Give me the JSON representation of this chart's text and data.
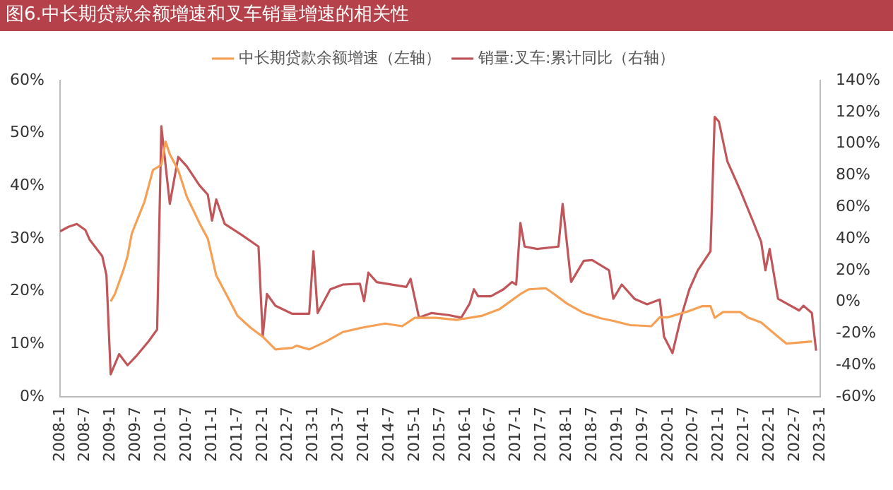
{
  "chart_data": {
    "type": "line",
    "title": "图6.中长期贷款余额增速和叉车销量增速的相关性",
    "xlim": [
      "2008-01",
      "2023-01"
    ],
    "xticks": [
      {
        "value": "2008-01",
        "label": "2008-1"
      },
      {
        "value": "2008-07",
        "label": "2008-7"
      },
      {
        "value": "2009-01",
        "label": "2009-1"
      },
      {
        "value": "2009-07",
        "label": "2009-7"
      },
      {
        "value": "2010-01",
        "label": "2010-1"
      },
      {
        "value": "2010-07",
        "label": "2010-7"
      },
      {
        "value": "2011-01",
        "label": "2011-1"
      },
      {
        "value": "2011-07",
        "label": "2011-7"
      },
      {
        "value": "2012-01",
        "label": "2012-1"
      },
      {
        "value": "2012-07",
        "label": "2012-7"
      },
      {
        "value": "2013-01",
        "label": "2013-1"
      },
      {
        "value": "2013-07",
        "label": "2013-7"
      },
      {
        "value": "2014-01",
        "label": "2014-1"
      },
      {
        "value": "2014-07",
        "label": "2014-7"
      },
      {
        "value": "2015-01",
        "label": "2015-1"
      },
      {
        "value": "2015-07",
        "label": "2015-7"
      },
      {
        "value": "2016-01",
        "label": "2016-1"
      },
      {
        "value": "2016-07",
        "label": "2016-7"
      },
      {
        "value": "2017-01",
        "label": "2017-1"
      },
      {
        "value": "2017-07",
        "label": "2017-7"
      },
      {
        "value": "2018-01",
        "label": "2018-1"
      },
      {
        "value": "2018-07",
        "label": "2018-7"
      },
      {
        "value": "2019-01",
        "label": "2019-1"
      },
      {
        "value": "2019-07",
        "label": "2019-7"
      },
      {
        "value": "2020-01",
        "label": "2020-1"
      },
      {
        "value": "2020-07",
        "label": "2020-7"
      },
      {
        "value": "2021-01",
        "label": "2021-1"
      },
      {
        "value": "2021-07",
        "label": "2021-7"
      },
      {
        "value": "2022-01",
        "label": "2022-1"
      },
      {
        "value": "2022-07",
        "label": "2022-7"
      },
      {
        "value": "2023-01",
        "label": "2023-1"
      }
    ],
    "ylim": [
      0,
      60
    ],
    "yticks": [
      {
        "value": 0,
        "label": "0%"
      },
      {
        "value": 10,
        "label": "10%"
      },
      {
        "value": 20,
        "label": "20%"
      },
      {
        "value": 30,
        "label": "30%"
      },
      {
        "value": 40,
        "label": "40%"
      },
      {
        "value": 50,
        "label": "50%"
      },
      {
        "value": 60,
        "label": "60%"
      }
    ],
    "y2lim": [
      -60,
      140
    ],
    "y2ticks": [
      {
        "value": -60,
        "label": "-60%"
      },
      {
        "value": -40,
        "label": "-40%"
      },
      {
        "value": -20,
        "label": "-20%"
      },
      {
        "value": 0,
        "label": "0%"
      },
      {
        "value": 20,
        "label": "20%"
      },
      {
        "value": 40,
        "label": "40%"
      },
      {
        "value": 60,
        "label": "60%"
      },
      {
        "value": 80,
        "label": "80%"
      },
      {
        "value": 100,
        "label": "100%"
      },
      {
        "value": 120,
        "label": "120%"
      },
      {
        "value": 140,
        "label": "140%"
      }
    ],
    "grid": false,
    "legend": "top",
    "marker": "none",
    "line_style": "solid",
    "series": [
      {
        "name": "中长期贷款余额增速（左轴）",
        "color": "#f5a055",
        "x": [
          "2009-01",
          "2009-02",
          "2009-04",
          "2009-05",
          "2009-06",
          "2009-09",
          "2009-11",
          "2010-01",
          "2010-02",
          "2010-03",
          "2010-05",
          "2010-07",
          "2010-10",
          "2010-12",
          "2011-02",
          "2011-05",
          "2011-07",
          "2011-10",
          "2012-01",
          "2012-04",
          "2012-08",
          "2012-09",
          "2012-12",
          "2013-04",
          "2013-08",
          "2014-01",
          "2014-06",
          "2014-10",
          "2015-01",
          "2015-06",
          "2015-11",
          "2016-05",
          "2016-09",
          "2017-02",
          "2017-04",
          "2017-08",
          "2017-10",
          "2018-01",
          "2018-05",
          "2018-09",
          "2018-12",
          "2019-04",
          "2019-09",
          "2019-11",
          "2020-01",
          "2020-06",
          "2020-09",
          "2020-11",
          "2020-12",
          "2021-02",
          "2021-06",
          "2021-08",
          "2021-11",
          "2022-03",
          "2022-05",
          "2022-08",
          "2022-11"
        ],
        "values": [
          18.1,
          19.5,
          24,
          26.7,
          31,
          37,
          43,
          44,
          48.4,
          46,
          43,
          38,
          33,
          30,
          23,
          18.5,
          15.4,
          13.2,
          11.4,
          9,
          9.3,
          9.7,
          9,
          10.5,
          12.3,
          13.2,
          13.9,
          13.4,
          15,
          15,
          14.6,
          15.4,
          16.6,
          19.5,
          20.4,
          20.6,
          19.5,
          17.7,
          15.9,
          14.9,
          14.4,
          13.6,
          13.4,
          15.1,
          15.1,
          16.3,
          17.2,
          17.2,
          15,
          16.1,
          16.1,
          15,
          14.1,
          11.4,
          10.1,
          10.3,
          10.5
        ]
      },
      {
        "name": "销量:叉车:累计同比（右轴）",
        "color": "#c0555a",
        "axis": "y2",
        "x": [
          "2008-01",
          "2008-03",
          "2008-05",
          "2008-07",
          "2008-08",
          "2008-11",
          "2008-12",
          "2009-01",
          "2009-03",
          "2009-05",
          "2009-07",
          "2009-10",
          "2009-12",
          "2010-01",
          "2010-03",
          "2010-05",
          "2010-07",
          "2010-10",
          "2010-12",
          "2011-01",
          "2011-02",
          "2011-04",
          "2011-08",
          "2011-12",
          "2012-01",
          "2012-02",
          "2012-04",
          "2012-08",
          "2012-12",
          "2013-01",
          "2013-02",
          "2013-05",
          "2013-08",
          "2013-12",
          "2014-01",
          "2014-02",
          "2014-04",
          "2014-11",
          "2014-12",
          "2015-02",
          "2015-05",
          "2015-09",
          "2015-12",
          "2016-02",
          "2016-03",
          "2016-04",
          "2016-07",
          "2016-10",
          "2016-12",
          "2017-01",
          "2017-02",
          "2017-03",
          "2017-06",
          "2017-11",
          "2017-12",
          "2018-02",
          "2018-05",
          "2018-07",
          "2018-11",
          "2018-12",
          "2019-02",
          "2019-05",
          "2019-08",
          "2019-11",
          "2019-12",
          "2020-02",
          "2020-04",
          "2020-06",
          "2020-08",
          "2020-11",
          "2020-12",
          "2021-01",
          "2021-03",
          "2021-06",
          "2021-09",
          "2021-11",
          "2021-12",
          "2022-01",
          "2022-03",
          "2022-08",
          "2022-09",
          "2022-11",
          "2022-12"
        ],
        "values": [
          44.6,
          47.5,
          49.3,
          45.5,
          39.5,
          29,
          17,
          -45.7,
          -33,
          -40,
          -34.4,
          -24.8,
          -17.4,
          111,
          62,
          91.7,
          85.8,
          73.8,
          67.8,
          51.4,
          64.8,
          49.3,
          42.4,
          35,
          -21.9,
          5,
          -2.4,
          -7.5,
          -7.5,
          32,
          -7,
          8,
          11,
          11.5,
          0.5,
          18.5,
          12.5,
          9.5,
          14.6,
          -9.9,
          -7,
          -8.3,
          -9.9,
          -1,
          8,
          3.6,
          3.6,
          8,
          12.6,
          11,
          49.9,
          35,
          33.5,
          35,
          62,
          12.6,
          26,
          26.5,
          20,
          2,
          11,
          2,
          -1.5,
          1.5,
          -21.9,
          -32.3,
          -9.9,
          8,
          20,
          32,
          117,
          114,
          88.8,
          70.9,
          51.4,
          38,
          20,
          33.5,
          2,
          -5.4,
          -2.4,
          -7,
          -30.8
        ]
      }
    ]
  }
}
